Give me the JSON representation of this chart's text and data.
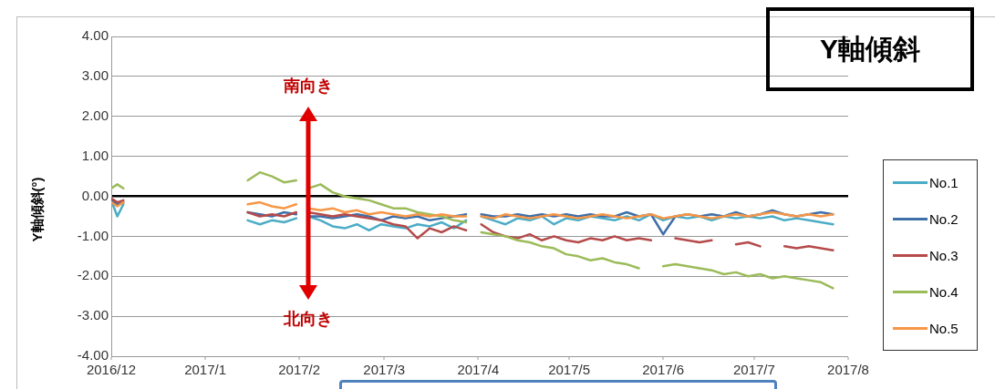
{
  "chart_data": {
    "type": "line",
    "title": "Y軸傾斜",
    "ylabel": "Y軸傾斜(°)",
    "annotations": [
      "南向き",
      "北向き"
    ],
    "x": [
      "2016-12-01",
      "2016-12-03",
      "2016-12-05",
      "2016-12-20",
      "2017-01-15",
      "2017-01-19",
      "2017-01-23",
      "2017-01-27",
      "2017-01-31",
      "2017-02-02",
      "2017-02-04",
      "2017-02-08",
      "2017-02-12",
      "2017-02-16",
      "2017-02-20",
      "2017-02-24",
      "2017-02-28",
      "2017-03-04",
      "2017-03-08",
      "2017-03-12",
      "2017-03-16",
      "2017-03-20",
      "2017-03-24",
      "2017-03-28",
      "2017-03-30",
      "2017-04-02",
      "2017-04-06",
      "2017-04-10",
      "2017-04-14",
      "2017-04-18",
      "2017-04-22",
      "2017-04-26",
      "2017-04-30",
      "2017-05-04",
      "2017-05-08",
      "2017-05-12",
      "2017-05-16",
      "2017-05-20",
      "2017-05-24",
      "2017-05-28",
      "2017-06-01",
      "2017-06-05",
      "2017-06-09",
      "2017-06-13",
      "2017-06-17",
      "2017-06-21",
      "2017-06-25",
      "2017-06-29",
      "2017-07-03",
      "2017-07-07",
      "2017-07-11",
      "2017-07-15",
      "2017-07-19",
      "2017-07-23",
      "2017-07-27"
    ],
    "series": [
      {
        "name": "No.1",
        "color": "#4bacc6",
        "values": [
          -0.1,
          -0.5,
          -0.2,
          null,
          -0.6,
          -0.7,
          -0.6,
          -0.65,
          -0.55,
          null,
          -0.5,
          -0.6,
          -0.75,
          -0.8,
          -0.7,
          -0.85,
          -0.7,
          -0.75,
          -0.8,
          -0.7,
          -0.75,
          -0.65,
          -0.8,
          -0.6,
          null,
          -0.5,
          -0.6,
          -0.7,
          -0.55,
          -0.6,
          -0.5,
          -0.7,
          -0.55,
          -0.6,
          -0.5,
          -0.55,
          -0.6,
          -0.5,
          -0.6,
          -0.45,
          -0.6,
          -0.5,
          -0.55,
          -0.5,
          -0.6,
          -0.5,
          -0.55,
          -0.5,
          -0.55,
          -0.5,
          -0.6,
          -0.55,
          -0.6,
          -0.65,
          -0.7
        ]
      },
      {
        "name": "No.2",
        "color": "#3f6fa8",
        "values": [
          -0.1,
          -0.2,
          -0.15,
          null,
          -0.4,
          -0.45,
          -0.5,
          -0.4,
          -0.45,
          null,
          -0.5,
          -0.5,
          -0.55,
          -0.5,
          -0.45,
          -0.5,
          -0.6,
          -0.5,
          -0.55,
          -0.5,
          -0.6,
          -0.55,
          -0.5,
          -0.45,
          null,
          -0.45,
          -0.5,
          -0.5,
          -0.45,
          -0.5,
          -0.45,
          -0.5,
          -0.45,
          -0.5,
          -0.45,
          -0.5,
          -0.5,
          -0.4,
          -0.5,
          -0.45,
          -0.95,
          -0.5,
          -0.45,
          -0.5,
          -0.45,
          -0.5,
          -0.4,
          -0.5,
          -0.45,
          -0.35,
          -0.45,
          -0.5,
          -0.45,
          -0.4,
          -0.45
        ]
      },
      {
        "name": "No.3",
        "color": "#b54a4a",
        "values": [
          -0.05,
          -0.15,
          -0.1,
          null,
          -0.4,
          -0.5,
          -0.45,
          -0.5,
          -0.4,
          null,
          -0.4,
          -0.45,
          -0.5,
          -0.45,
          -0.5,
          -0.55,
          -0.6,
          -0.7,
          -0.75,
          -1.05,
          -0.8,
          -0.9,
          -0.75,
          -0.85,
          null,
          -0.7,
          -0.9,
          -1.0,
          -1.05,
          -0.95,
          -1.1,
          -1.0,
          -1.1,
          -1.15,
          -1.05,
          -1.1,
          -1.0,
          -1.1,
          -1.05,
          -1.1,
          null,
          -1.05,
          -1.1,
          -1.15,
          -1.1,
          null,
          -1.2,
          -1.15,
          -1.25,
          null,
          -1.25,
          -1.3,
          -1.25,
          -1.3,
          -1.35
        ]
      },
      {
        "name": "No.4",
        "color": "#9bbb59",
        "values": [
          0.2,
          0.3,
          0.2,
          null,
          0.4,
          0.6,
          0.5,
          0.35,
          0.4,
          null,
          0.2,
          0.3,
          0.1,
          0.0,
          -0.05,
          -0.1,
          -0.2,
          -0.3,
          -0.3,
          -0.4,
          -0.45,
          -0.5,
          -0.6,
          -0.65,
          null,
          -0.9,
          -0.95,
          -1.0,
          -1.1,
          -1.15,
          -1.25,
          -1.3,
          -1.45,
          -1.5,
          -1.6,
          -1.55,
          -1.65,
          -1.7,
          -1.8,
          null,
          -1.75,
          -1.7,
          -1.75,
          -1.8,
          -1.85,
          -1.95,
          -1.9,
          -2.0,
          -1.95,
          -2.05,
          -2.0,
          -2.05,
          -2.1,
          -2.15,
          -2.3
        ]
      },
      {
        "name": "No.5",
        "color": "#f79646",
        "values": [
          -0.15,
          -0.25,
          -0.15,
          null,
          -0.2,
          -0.15,
          -0.25,
          -0.3,
          -0.2,
          null,
          -0.3,
          -0.35,
          -0.3,
          -0.4,
          -0.35,
          -0.45,
          -0.4,
          -0.45,
          -0.5,
          -0.45,
          -0.5,
          -0.45,
          -0.5,
          -0.5,
          null,
          -0.5,
          -0.55,
          -0.45,
          -0.5,
          -0.55,
          -0.5,
          -0.45,
          -0.5,
          -0.55,
          -0.5,
          -0.45,
          -0.5,
          -0.55,
          -0.5,
          -0.45,
          -0.55,
          -0.5,
          -0.45,
          -0.5,
          -0.55,
          -0.5,
          -0.45,
          -0.5,
          -0.45,
          -0.4,
          -0.45,
          -0.5,
          -0.45,
          -0.5,
          -0.45
        ]
      }
    ],
    "xlim": [
      "2016-12-01",
      "2017-08-01"
    ],
    "xticks": [
      {
        "value": "2016-12-01",
        "label": "2016/12"
      },
      {
        "value": "2017-01-01",
        "label": "2017/1"
      },
      {
        "value": "2017-02-01",
        "label": "2017/2"
      },
      {
        "value": "2017-03-01",
        "label": "2017/3"
      },
      {
        "value": "2017-04-01",
        "label": "2017/4"
      },
      {
        "value": "2017-05-01",
        "label": "2017/5"
      },
      {
        "value": "2017-06-01",
        "label": "2017/6"
      },
      {
        "value": "2017-07-01",
        "label": "2017/7"
      },
      {
        "value": "2017-08-01",
        "label": "2017/8"
      }
    ],
    "ylim": [
      -4,
      4
    ],
    "yticks": [
      {
        "value": -4,
        "label": "-4.00"
      },
      {
        "value": -3,
        "label": "-3.00"
      },
      {
        "value": -2,
        "label": "-2.00"
      },
      {
        "value": -1,
        "label": "-1.00"
      },
      {
        "value": 0,
        "label": "0.00"
      },
      {
        "value": 1,
        "label": "1.00"
      },
      {
        "value": 2,
        "label": "2.00"
      },
      {
        "value": 3,
        "label": "3.00"
      },
      {
        "value": 4,
        "label": "4.00"
      }
    ],
    "grid": "y",
    "legend": "right",
    "marker": "none",
    "line_style": "solid"
  }
}
